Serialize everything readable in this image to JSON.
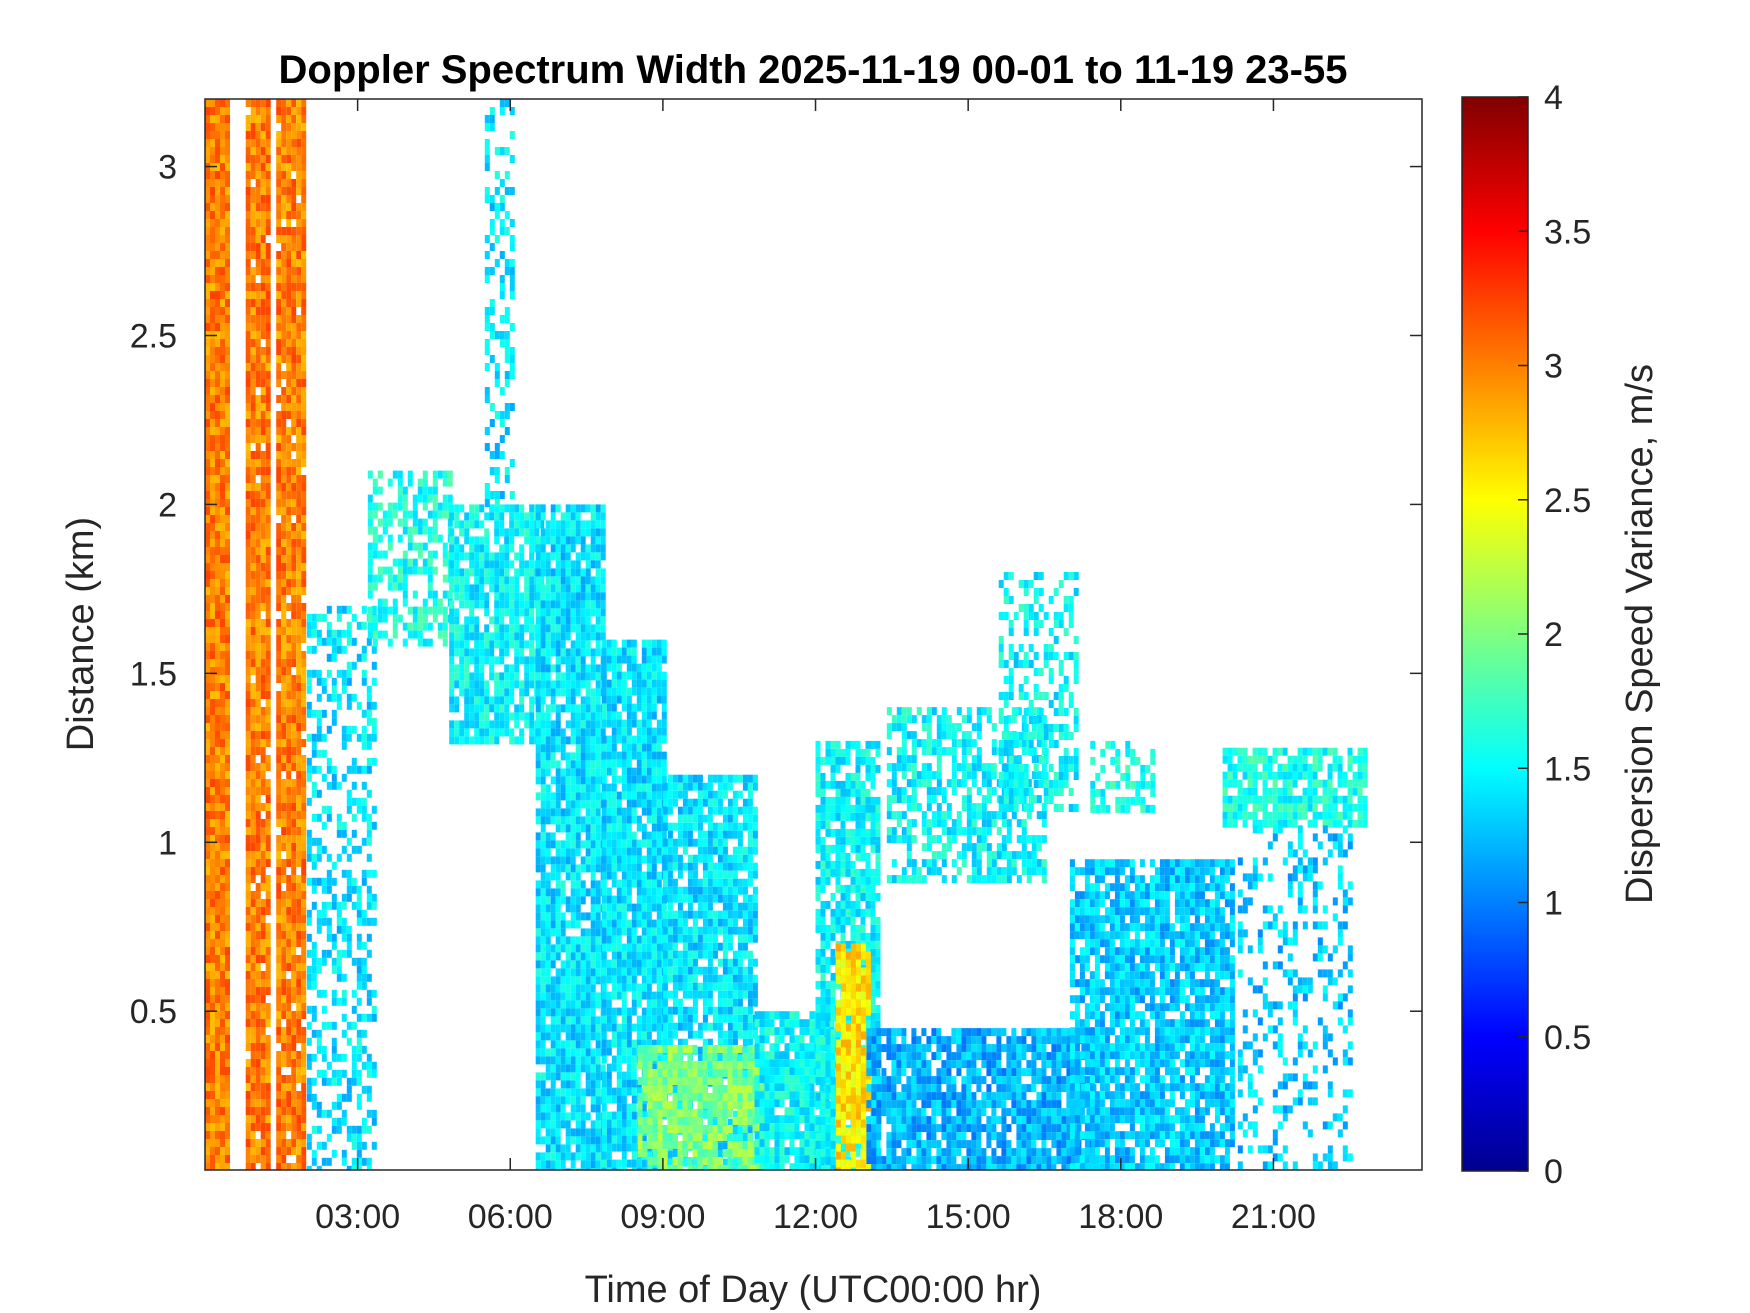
{
  "chart_data": {
    "type": "heatmap",
    "title": "Doppler Spectrum Width 2025-11-19 00-01 to 11-19 23-55",
    "xlabel": "Time of Day (UTC00:00 hr)",
    "ylabel": "Distance (km)",
    "colorbar_label": "Dispersion Speed Variance, m/s",
    "colormap": "jet",
    "x_range_hours": [
      0.0,
      23.92
    ],
    "ylim": [
      0.03,
      3.2
    ],
    "clim": [
      0,
      4
    ],
    "x_ticks": [
      3,
      6,
      9,
      12,
      15,
      18,
      21
    ],
    "x_tick_labels": [
      "03:00",
      "06:00",
      "09:00",
      "12:00",
      "15:00",
      "18:00",
      "21:00"
    ],
    "y_ticks": [
      0.5,
      1,
      1.5,
      2,
      2.5,
      3
    ],
    "y_tick_labels": [
      "0.5",
      "1",
      "1.5",
      "2",
      "2.5",
      "3"
    ],
    "colorbar_ticks": [
      0,
      0.5,
      1,
      1.5,
      2,
      2.5,
      3,
      3.5,
      4
    ],
    "colorbar_tick_labels": [
      "0",
      "0.5",
      "1",
      "1.5",
      "2",
      "2.5",
      "3",
      "3.5",
      "4"
    ],
    "regions": [
      {
        "t0": 0.0,
        "t1": 0.45,
        "h0": 0.03,
        "h1": 3.2,
        "value": 3.0,
        "fill": 1.0
      },
      {
        "t0": 0.8,
        "t1": 1.2,
        "h0": 0.03,
        "h1": 3.2,
        "value": 3.0,
        "fill": 0.95
      },
      {
        "t0": 1.4,
        "t1": 1.9,
        "h0": 0.03,
        "h1": 3.2,
        "value": 3.0,
        "fill": 0.95
      },
      {
        "t0": 2.0,
        "t1": 3.3,
        "h0": 0.03,
        "h1": 1.7,
        "value": 1.4,
        "fill": 0.45
      },
      {
        "t0": 3.2,
        "t1": 4.8,
        "h0": 1.6,
        "h1": 2.1,
        "value": 1.6,
        "fill": 0.6
      },
      {
        "t0": 4.8,
        "t1": 6.6,
        "h0": 1.3,
        "h1": 2.0,
        "value": 1.5,
        "fill": 0.8
      },
      {
        "t0": 5.5,
        "t1": 6.0,
        "h0": 2.0,
        "h1": 3.2,
        "value": 1.4,
        "fill": 0.45
      },
      {
        "t0": 6.5,
        "t1": 7.8,
        "h0": 0.03,
        "h1": 2.0,
        "value": 1.4,
        "fill": 0.9
      },
      {
        "t0": 7.8,
        "t1": 9.0,
        "h0": 0.03,
        "h1": 1.6,
        "value": 1.4,
        "fill": 0.9
      },
      {
        "t0": 9.0,
        "t1": 10.8,
        "h0": 0.03,
        "h1": 1.2,
        "value": 1.4,
        "fill": 0.85
      },
      {
        "t0": 8.5,
        "t1": 11.0,
        "h0": 0.03,
        "h1": 0.4,
        "value": 2.0,
        "fill": 0.85
      },
      {
        "t0": 10.8,
        "t1": 12.3,
        "h0": 0.03,
        "h1": 0.5,
        "value": 1.5,
        "fill": 0.85
      },
      {
        "t0": 12.0,
        "t1": 13.2,
        "h0": 0.03,
        "h1": 1.3,
        "value": 1.5,
        "fill": 0.8
      },
      {
        "t0": 12.4,
        "t1": 13.0,
        "h0": 0.03,
        "h1": 0.7,
        "value": 2.6,
        "fill": 0.9
      },
      {
        "t0": 13.4,
        "t1": 16.5,
        "h0": 0.9,
        "h1": 1.4,
        "value": 1.5,
        "fill": 0.6
      },
      {
        "t0": 15.6,
        "t1": 17.1,
        "h0": 1.1,
        "h1": 1.8,
        "value": 1.5,
        "fill": 0.5
      },
      {
        "t0": 13.0,
        "t1": 17.5,
        "h0": 0.03,
        "h1": 0.45,
        "value": 1.2,
        "fill": 0.85
      },
      {
        "t0": 17.0,
        "t1": 20.2,
        "h0": 0.03,
        "h1": 0.95,
        "value": 1.3,
        "fill": 0.85
      },
      {
        "t0": 17.4,
        "t1": 18.6,
        "h0": 1.1,
        "h1": 1.3,
        "value": 1.6,
        "fill": 0.5
      },
      {
        "t0": 20.0,
        "t1": 22.8,
        "h0": 1.05,
        "h1": 1.28,
        "value": 1.6,
        "fill": 0.85
      },
      {
        "t0": 20.3,
        "t1": 22.5,
        "h0": 0.03,
        "h1": 1.05,
        "value": 1.3,
        "fill": 0.3
      }
    ]
  }
}
